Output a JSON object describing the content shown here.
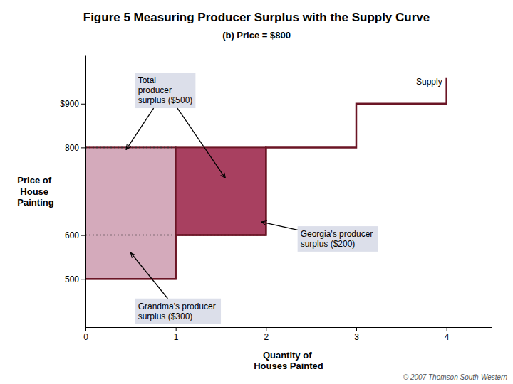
{
  "chart_data": {
    "type": "line",
    "title": "Figure 5 Measuring Producer Surplus with the Supply Curve",
    "subtitle": "(b) Price = $800",
    "ylabel": "Price of\nHouse\nPainting",
    "xlabel": "Quantity of\nHouses Painted",
    "series": [
      {
        "name": "Supply",
        "color": "#6b1525",
        "x": [
          0,
          1,
          1,
          2,
          2,
          3,
          3,
          4,
          4
        ],
        "values": [
          500,
          500,
          600,
          600,
          800,
          800,
          900,
          900,
          960
        ]
      }
    ],
    "regions": [
      {
        "x": [
          0,
          1
        ],
        "y": [
          500,
          800
        ],
        "color": "#d4aabb"
      },
      {
        "x": [
          1,
          2
        ],
        "y": [
          600,
          800
        ],
        "color": "#a84060"
      }
    ],
    "hlines": [
      {
        "value": 800,
        "x": [
          0,
          1
        ]
      },
      {
        "value": 600,
        "x": [
          0,
          2
        ]
      }
    ],
    "annotations": [
      {
        "text": "Total\nproducer\nsurplus ($500)",
        "x": 0.55,
        "y": 970,
        "color": "#d8dce8",
        "arrows": [
          [
            0.45,
            795
          ],
          [
            1.55,
            730
          ]
        ]
      },
      {
        "text": "Georgia's producer\nsurplus ($200)",
        "x": 2.35,
        "y": 620,
        "color": "#d8dce8",
        "arrows": [
          [
            1.95,
            630
          ]
        ]
      },
      {
        "text": "Grandma's producer\nsurplus ($300)",
        "x": 0.55,
        "y": 455,
        "color": "#d8dce8",
        "arrows": [
          [
            0.5,
            560
          ]
        ]
      }
    ],
    "caption": "© 2007 Thomson South-Western",
    "xlim": [
      0,
      4.5
    ],
    "ylim": [
      390,
      1010
    ],
    "xticks": [
      0,
      1,
      2,
      3,
      4
    ],
    "yticks": [
      500,
      600,
      800,
      {
        "value": 900,
        "label": "$900"
      }
    ]
  }
}
